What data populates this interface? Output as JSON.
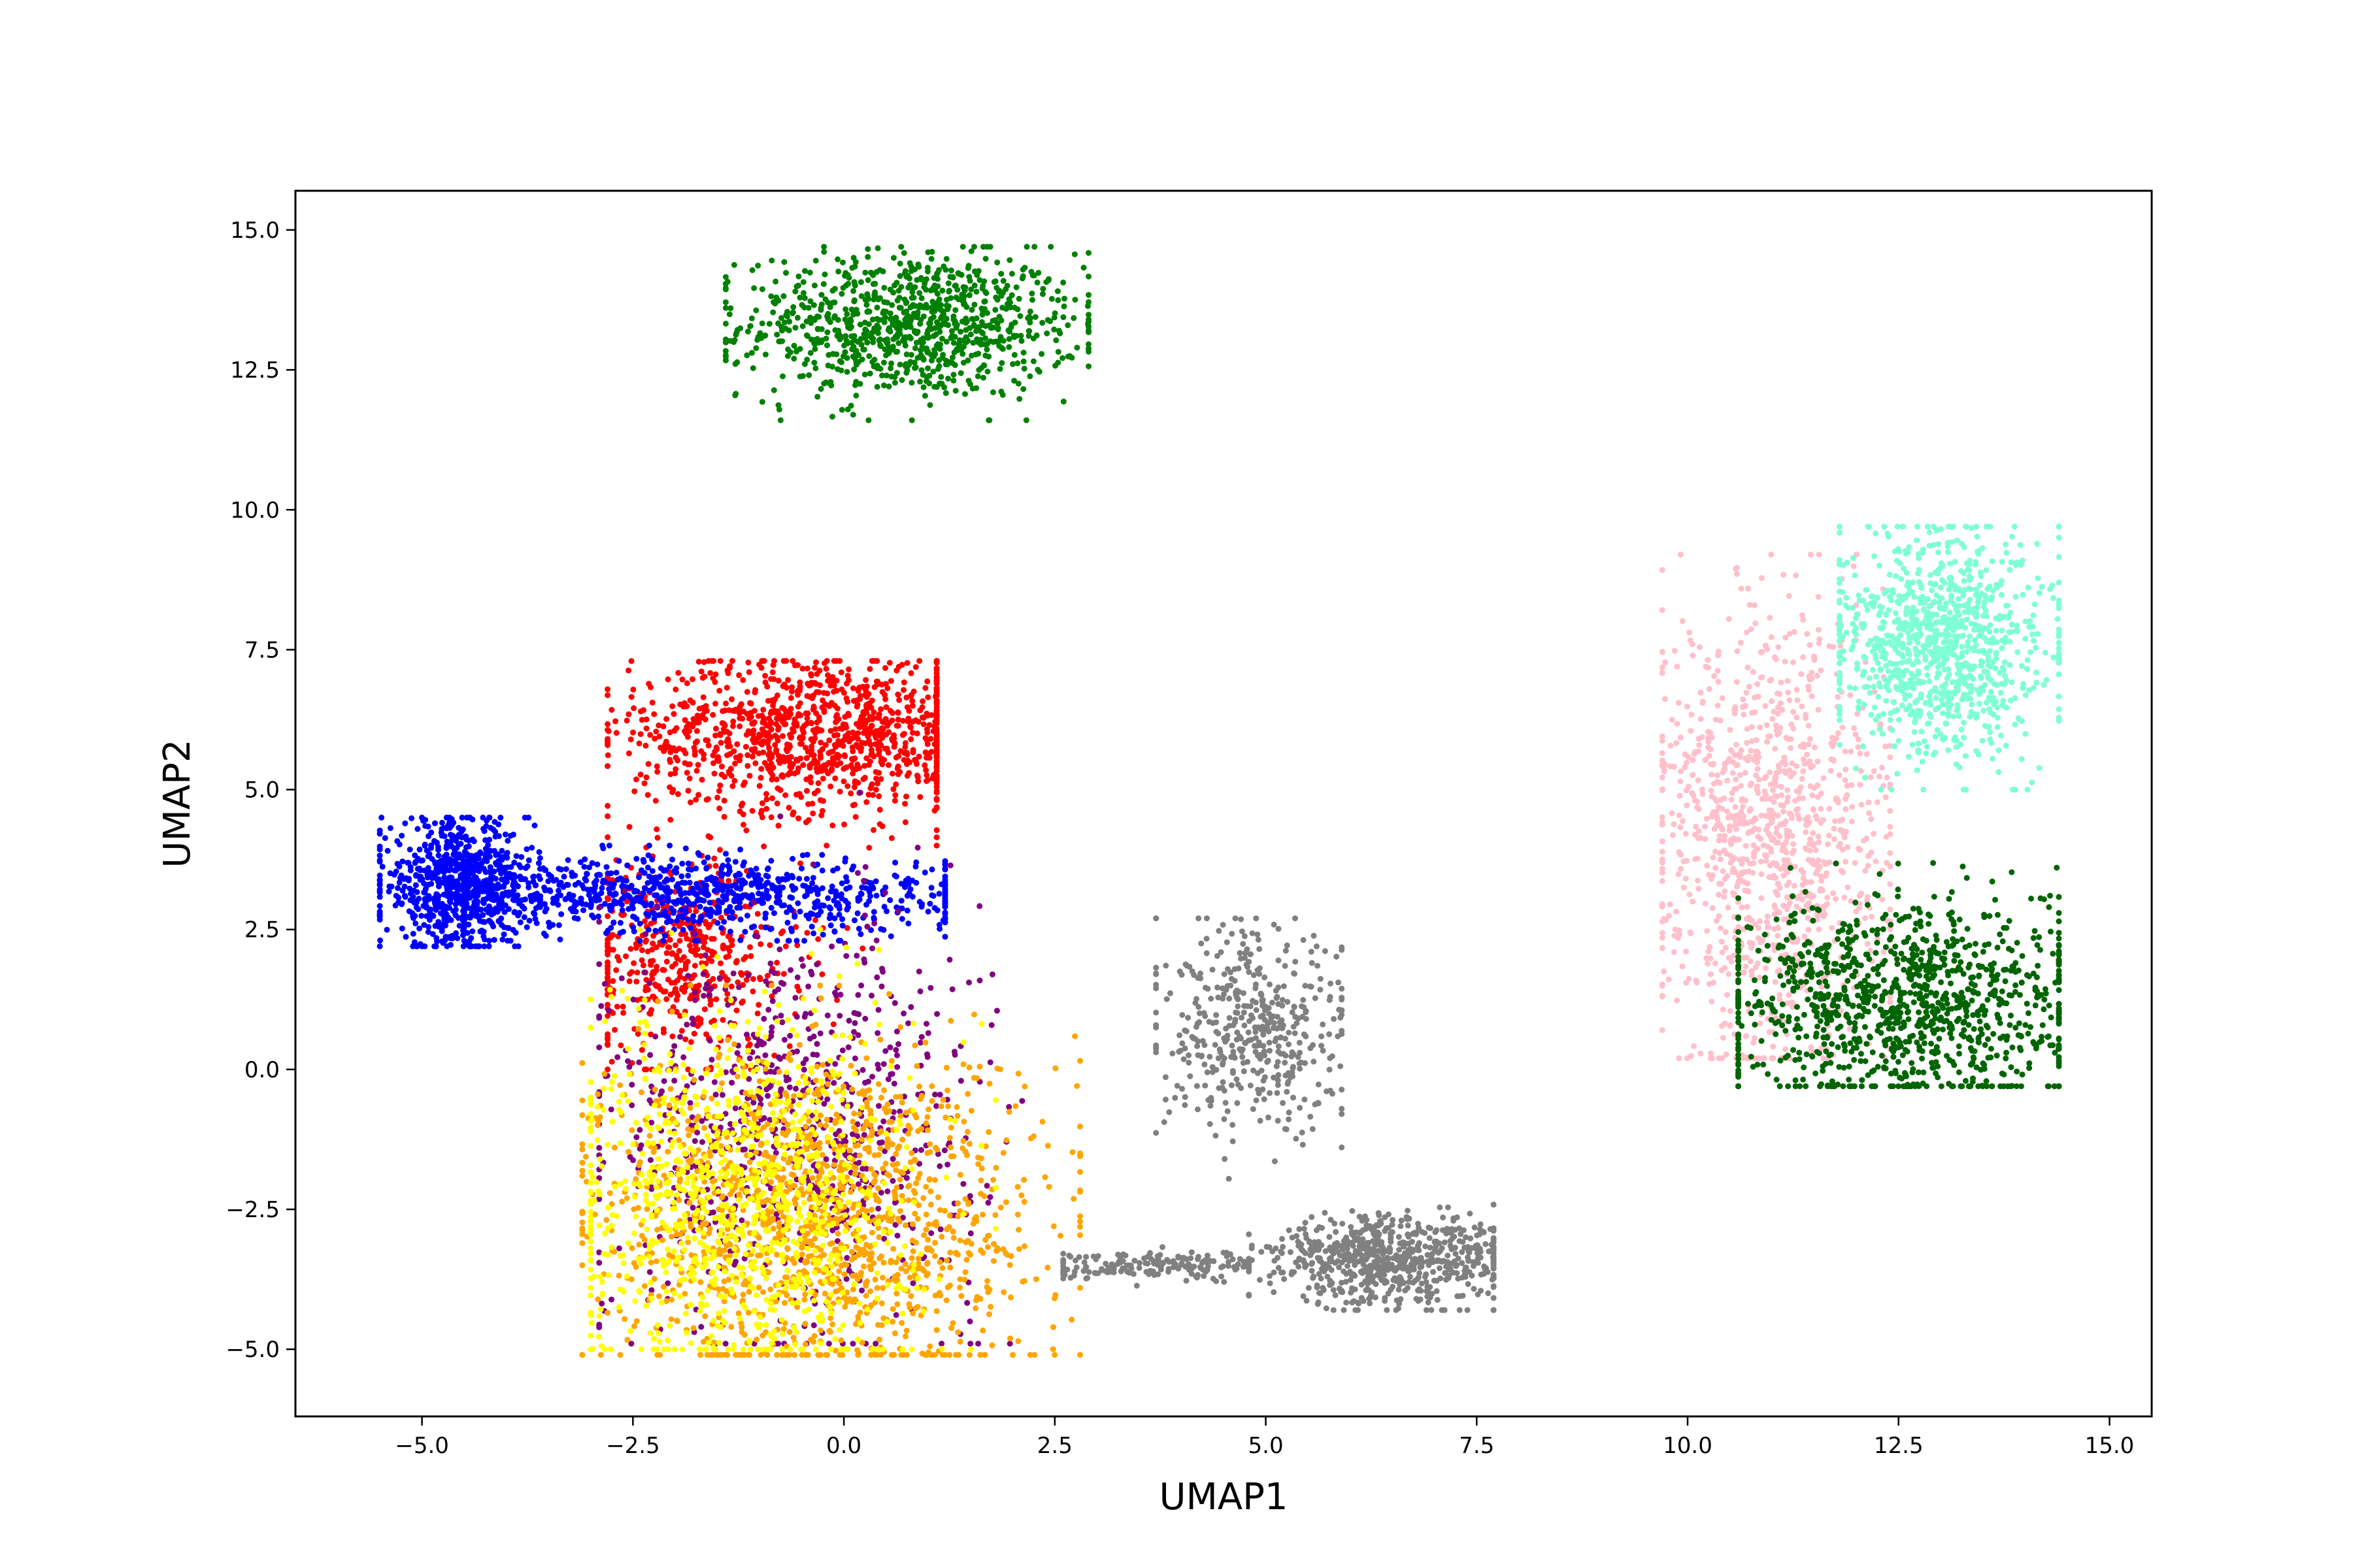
{
  "chart_data": {
    "type": "scatter",
    "title": "",
    "xlabel": "UMAP1",
    "ylabel": "UMAP2",
    "xlim": [
      -6.5,
      15.5
    ],
    "ylim": [
      -6.2,
      15.7
    ],
    "xticks": [
      -5.0,
      -2.5,
      0.0,
      2.5,
      5.0,
      7.5,
      10.0,
      12.5,
      15.0
    ],
    "xtick_labels": [
      "−5.0",
      "−2.5",
      "0.0",
      "2.5",
      "5.0",
      "7.5",
      "10.0",
      "12.5",
      "15.0"
    ],
    "yticks": [
      -5.0,
      -2.5,
      0.0,
      2.5,
      5.0,
      7.5,
      10.0,
      12.5,
      15.0
    ],
    "ytick_labels": [
      "−5.0",
      "−2.5",
      "0.0",
      "2.5",
      "5.0",
      "7.5",
      "10.0",
      "12.5",
      "15.0"
    ],
    "grid": false,
    "legend": "none",
    "clusters": [
      {
        "color": "#008000",
        "center": [
          0.8,
          13.3
        ],
        "spread": [
          1.0,
          0.65
        ],
        "count": 950,
        "xrange": [
          -1.4,
          2.9
        ],
        "yrange": [
          11.6,
          14.7
        ]
      },
      {
        "color": "#ff0000",
        "center": [
          -0.3,
          6.0
        ],
        "spread": [
          1.1,
          0.7
        ],
        "count": 1100,
        "xrange": [
          -2.8,
          1.1
        ],
        "yrange": [
          4.0,
          7.3
        ]
      },
      {
        "color": "#ff0000",
        "center": [
          -1.9,
          2.0
        ],
        "spread": [
          0.7,
          0.9
        ],
        "count": 500,
        "xrange": [
          -2.8,
          0.3
        ],
        "yrange": [
          0.0,
          5.0
        ]
      },
      {
        "color": "#0000ff",
        "center": [
          -4.6,
          3.3
        ],
        "spread": [
          0.45,
          0.55
        ],
        "count": 700,
        "xrange": [
          -5.5,
          -3.6
        ],
        "yrange": [
          2.2,
          4.5
        ]
      },
      {
        "color": "#0000ff",
        "center": [
          -1.8,
          3.1
        ],
        "spread": [
          1.7,
          0.35
        ],
        "count": 900,
        "xrange": [
          -4.5,
          1.2
        ],
        "yrange": [
          2.3,
          4.0
        ]
      },
      {
        "color": "#800080",
        "center": [
          -0.6,
          -1.0
        ],
        "spread": [
          1.1,
          1.8
        ],
        "count": 800,
        "xrange": [
          -2.9,
          2.4
        ],
        "yrange": [
          -4.9,
          5.2
        ]
      },
      {
        "color": "#ffa500",
        "center": [
          -0.3,
          -2.6
        ],
        "spread": [
          1.3,
          1.5
        ],
        "count": 1400,
        "xrange": [
          -3.1,
          2.8
        ],
        "yrange": [
          -5.1,
          1.5
        ]
      },
      {
        "color": "#ffff00",
        "center": [
          -1.2,
          -2.3
        ],
        "spread": [
          1.0,
          1.6
        ],
        "count": 1000,
        "xrange": [
          -3.0,
          1.8
        ],
        "yrange": [
          -5.0,
          2.5
        ]
      },
      {
        "color": "#808080",
        "center": [
          6.5,
          -3.4
        ],
        "spread": [
          0.75,
          0.4
        ],
        "count": 700,
        "xrange": [
          4.8,
          7.7
        ],
        "yrange": [
          -4.3,
          -2.1
        ]
      },
      {
        "color": "#808080",
        "center": [
          4.9,
          0.6
        ],
        "spread": [
          0.6,
          0.9
        ],
        "count": 450,
        "xrange": [
          3.7,
          5.9
        ],
        "yrange": [
          -2.0,
          2.7
        ]
      },
      {
        "color": "#808080",
        "center": [
          3.7,
          -3.5
        ],
        "spread": [
          0.7,
          0.12
        ],
        "count": 180,
        "xrange": [
          2.6,
          4.8
        ],
        "yrange": [
          -3.9,
          -3.1
        ]
      },
      {
        "color": "#ffc0cb",
        "center": [
          11.0,
          4.2
        ],
        "spread": [
          0.7,
          2.0
        ],
        "count": 1100,
        "xrange": [
          9.7,
          12.4
        ],
        "yrange": [
          0.2,
          9.2
        ]
      },
      {
        "color": "#7fffd4",
        "center": [
          13.0,
          7.6
        ],
        "spread": [
          0.65,
          1.0
        ],
        "count": 1000,
        "xrange": [
          11.8,
          14.4
        ],
        "yrange": [
          5.0,
          9.7
        ]
      },
      {
        "color": "#006400",
        "center": [
          12.6,
          1.2
        ],
        "spread": [
          1.1,
          0.9
        ],
        "count": 1100,
        "xrange": [
          10.6,
          14.4
        ],
        "yrange": [
          -0.3,
          5.3
        ]
      }
    ]
  }
}
